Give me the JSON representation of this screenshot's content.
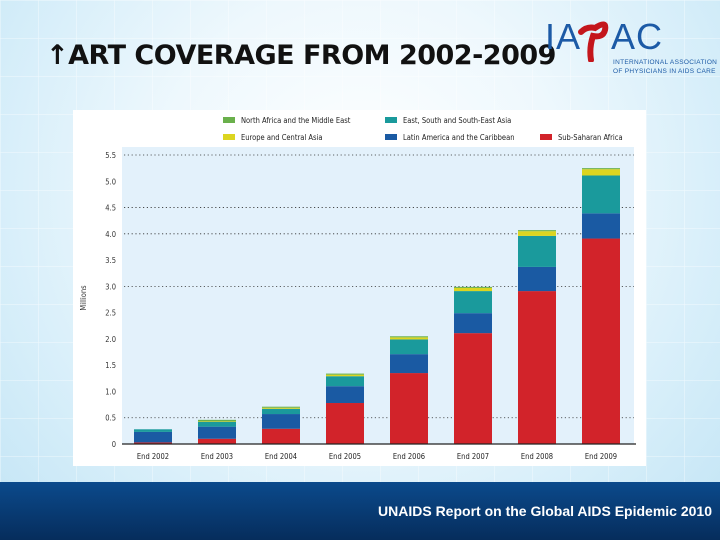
{
  "slide": {
    "title_arrow": "↑",
    "title": "ART COVERAGE FROM 2002-2009",
    "logo": {
      "name": "IAPAC",
      "left_letters": "IA",
      "right_letters": "AC",
      "subtitle_line1": "INTERNATIONAL ASSOCIATION",
      "subtitle_line2": "OF PHYSICIANS IN AIDS CARE"
    },
    "footer": "UNAIDS Report on the Global AIDS Epidemic 2010"
  },
  "chart_data": {
    "type": "bar",
    "stacked": true,
    "title": "",
    "xlabel": "",
    "ylabel": "Millions",
    "ylim": [
      0,
      5.5
    ],
    "yticks": [
      0,
      0.5,
      1.0,
      1.5,
      2.0,
      2.5,
      3.0,
      3.5,
      4.0,
      4.5,
      5.0,
      5.5
    ],
    "ytick_labels": [
      "0",
      "0.5",
      "1.0",
      "1.5",
      "2.0",
      "2.5",
      "3.0",
      "3.5",
      "4.0",
      "4.5",
      "5.0",
      "5.5"
    ],
    "dotted_gridlines_at": [
      0.5,
      3.0,
      4.0,
      4.5,
      5.5
    ],
    "legend_position": "top",
    "categories": [
      "End 2002",
      "End 2003",
      "End 2004",
      "End 2005",
      "End 2006",
      "End 2007",
      "End 2008",
      "End 2009"
    ],
    "series": [
      {
        "name": "Sub-Saharan Africa",
        "color": "#d2232a",
        "values": [
          0.03,
          0.1,
          0.29,
          0.78,
          1.35,
          2.11,
          2.91,
          3.91
        ]
      },
      {
        "name": "Latin America and the Caribbean",
        "color": "#1a5aa3",
        "values": [
          0.2,
          0.23,
          0.28,
          0.32,
          0.36,
          0.38,
          0.46,
          0.48
        ]
      },
      {
        "name": "East, South and South-East Asia",
        "color": "#1a9a9c",
        "values": [
          0.05,
          0.09,
          0.1,
          0.19,
          0.28,
          0.42,
          0.59,
          0.72
        ]
      },
      {
        "name": "Europe and Central Asia",
        "color": "#dcd520",
        "values": [
          0.0,
          0.01,
          0.02,
          0.03,
          0.04,
          0.06,
          0.09,
          0.12
        ]
      },
      {
        "name": "North Africa and the Middle East",
        "color": "#6ab04c",
        "values": [
          0.0,
          0.03,
          0.02,
          0.02,
          0.02,
          0.02,
          0.02,
          0.02
        ]
      }
    ],
    "legend": [
      {
        "name": "North Africa and the Middle East",
        "color": "#6ab04c"
      },
      {
        "name": "East, South and South-East Asia",
        "color": "#1a9a9c"
      },
      {
        "name": "Europe and Central Asia",
        "color": "#dcd520"
      },
      {
        "name": "Latin America and the Caribbean",
        "color": "#1a5aa3"
      },
      {
        "name": "Sub-Saharan Africa",
        "color": "#d2232a"
      }
    ]
  }
}
